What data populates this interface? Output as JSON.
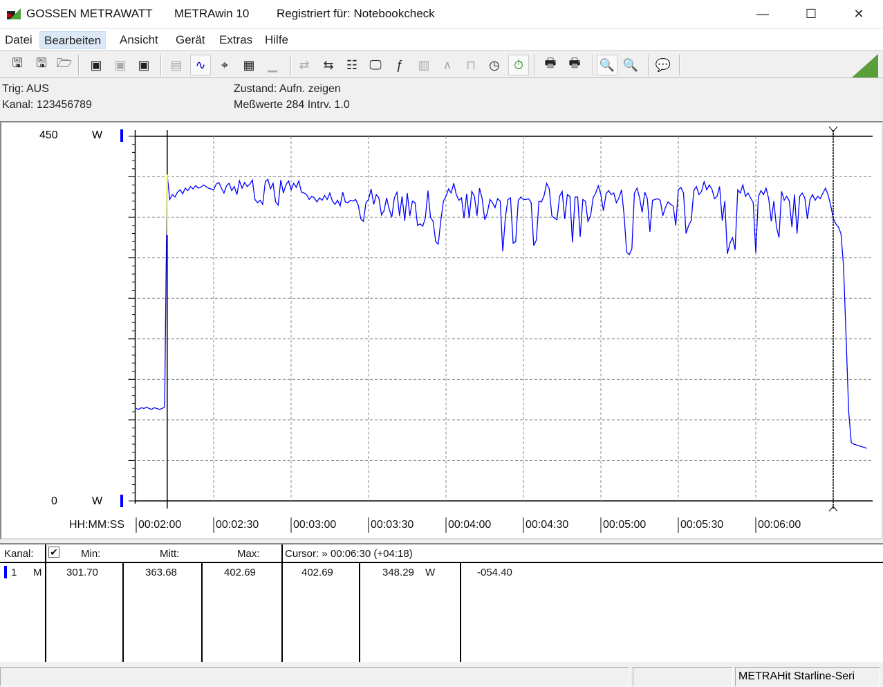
{
  "titlebar": {
    "brand": "GOSSEN METRAWATT",
    "app": "METRAwin 10",
    "registered": "Registriert für: Notebookcheck",
    "minimize": "—",
    "maximize": "☐",
    "close": "✕"
  },
  "menu": [
    "Datei",
    "Bearbeiten",
    "Ansicht",
    "Gerät",
    "Extras",
    "Hilfe"
  ],
  "menu_selected": "Bearbeiten",
  "toolbar": [
    {
      "icon": "save-export-icon",
      "glyph": "🖫"
    },
    {
      "icon": "save-import-icon",
      "glyph": "🖫"
    },
    {
      "icon": "open-folder-icon",
      "glyph": "🗁"
    },
    {
      "icon": "device-read-icon",
      "glyph": "▣"
    },
    {
      "icon": "device-cancel-icon",
      "glyph": "▣"
    },
    {
      "icon": "device-memory-icon",
      "glyph": "▣"
    },
    {
      "icon": "numeric-display-icon",
      "glyph": "▤"
    },
    {
      "icon": "waveform-grid-icon",
      "glyph": "∿"
    },
    {
      "icon": "crosshair-icon",
      "glyph": "⌖"
    },
    {
      "icon": "table-icon",
      "glyph": "▦"
    },
    {
      "icon": "bar-list-icon",
      "glyph": "▁"
    },
    {
      "icon": "transfer-icon",
      "glyph": "⇄"
    },
    {
      "icon": "device-connect-icon",
      "glyph": "⇆"
    },
    {
      "icon": "settings-list-icon",
      "glyph": "☷"
    },
    {
      "icon": "monitor-icon",
      "glyph": "🖵"
    },
    {
      "icon": "function-icon",
      "glyph": "ƒ"
    },
    {
      "icon": "device-numeric-icon",
      "glyph": "▥"
    },
    {
      "icon": "signal-range-icon",
      "glyph": "∧"
    },
    {
      "icon": "pulse-icon",
      "glyph": "⊓"
    },
    {
      "icon": "timer-device-icon",
      "glyph": "◷"
    },
    {
      "icon": "stopwatch-icon",
      "glyph": "⏱"
    },
    {
      "icon": "print-preview-icon",
      "glyph": "🖶"
    },
    {
      "icon": "print-icon",
      "glyph": "🖶"
    },
    {
      "icon": "zoom-waveform-icon",
      "glyph": "🔍"
    },
    {
      "icon": "zoom-signal-icon",
      "glyph": "🔍"
    },
    {
      "icon": "comment-icon",
      "glyph": "💬"
    }
  ],
  "info": {
    "trig": "Trig: AUS",
    "kanal": "Kanal: 123456789",
    "zustand": "Zustand:   Aufn. zeigen",
    "messwerte": "Meßwerte 284   Intrv. 1.0"
  },
  "chart_data": {
    "type": "line",
    "ylim": [
      0,
      450
    ],
    "yunit": "W",
    "ytick_labels": [
      "450",
      "0"
    ],
    "ygrid_step": 50,
    "xlabel": "HH:MM:SS",
    "x_ticks": [
      "00:02:00",
      "00:02:30",
      "00:03:00",
      "00:03:30",
      "00:04:00",
      "00:04:30",
      "00:05:00",
      "00:05:30",
      "00:06:00"
    ],
    "x_start": "00:02:00",
    "interval_s": 1,
    "grid": true,
    "line_color": "#0000ff",
    "cursors": [
      "00:02:12",
      "00:06:30"
    ],
    "values": [
      114,
      113,
      115,
      114,
      116,
      114,
      113,
      115,
      114,
      113,
      114,
      116,
      402.69,
      372,
      378,
      375,
      381,
      384,
      379,
      386,
      383,
      388,
      385,
      389,
      386,
      387,
      390,
      388,
      386,
      385,
      384,
      391,
      393,
      386,
      380,
      389,
      392,
      383,
      388,
      378,
      395,
      386,
      393,
      388,
      391,
      396,
      372,
      368,
      371,
      366,
      394,
      397,
      385,
      392,
      369,
      365,
      396,
      380,
      390,
      395,
      384,
      392,
      387,
      395,
      381,
      380,
      378,
      372,
      376,
      374,
      369,
      374,
      371,
      377,
      372,
      380,
      370,
      366,
      371,
      364,
      381,
      369,
      368,
      371,
      370,
      372,
      365,
      348,
      345,
      368,
      372,
      385,
      366,
      378,
      374,
      353,
      358,
      374,
      360,
      350,
      374,
      381,
      352,
      376,
      346,
      380,
      352,
      370,
      368,
      340,
      342,
      339,
      349,
      383,
      350,
      345,
      320,
      317,
      346,
      370,
      376,
      385,
      380,
      392,
      378,
      371,
      374,
      349,
      379,
      349,
      382,
      376,
      352,
      386,
      373,
      347,
      355,
      372,
      368,
      362,
      373,
      370,
      308,
      350,
      372,
      374,
      318,
      320,
      371,
      375,
      372,
      372,
      373,
      368,
      315,
      322,
      370,
      369,
      377,
      392,
      385,
      352,
      349,
      347,
      376,
      382,
      348,
      378,
      376,
      319,
      375,
      375,
      326,
      372,
      370,
      345,
      352,
      374,
      380,
      389,
      378,
      358,
      379,
      383,
      378,
      380,
      368,
      374,
      384,
      352,
      307,
      304,
      311,
      380,
      386,
      374,
      356,
      381,
      373,
      332,
      371,
      372,
      373,
      371,
      352,
      362,
      369,
      366,
      364,
      340,
      384,
      387,
      380,
      330,
      340,
      346,
      383,
      388,
      378,
      382,
      394,
      384,
      390,
      385,
      373,
      376,
      388,
      346,
      370,
      305,
      318,
      325,
      310,
      384,
      380,
      390,
      376,
      380,
      374,
      368,
      306,
      375,
      383,
      378,
      386,
      373,
      345,
      370,
      338,
      325,
      382,
      371,
      376,
      370,
      338,
      378,
      330,
      376,
      380,
      374,
      348,
      372,
      378,
      371,
      376,
      373,
      380,
      386,
      378,
      365,
      349,
      342,
      338,
      330,
      290,
      200,
      110,
      72,
      70,
      69,
      68,
      67,
      66,
      65
    ]
  },
  "table": {
    "headers": {
      "kanal": "Kanal:",
      "min": "Min:",
      "mitt": "Mitt:",
      "max": "Max:",
      "cursor": "Cursor: » 00:06:30 (+04:18)"
    },
    "row": {
      "channel": "1",
      "mode": "M",
      "min": "301.70",
      "mitt": "363.68",
      "max": "402.69",
      "cursor1": "402.69",
      "cursor2": "348.29",
      "unit": "W",
      "diff": "-054.40"
    },
    "checked": true,
    "channel_color": "#0000ff"
  },
  "status": {
    "device": "METRAHit Starline-Seri"
  },
  "colors": {
    "accent": "#5a9e3a",
    "trace": "#0000ff",
    "cursor_segment": "#ffff00"
  }
}
